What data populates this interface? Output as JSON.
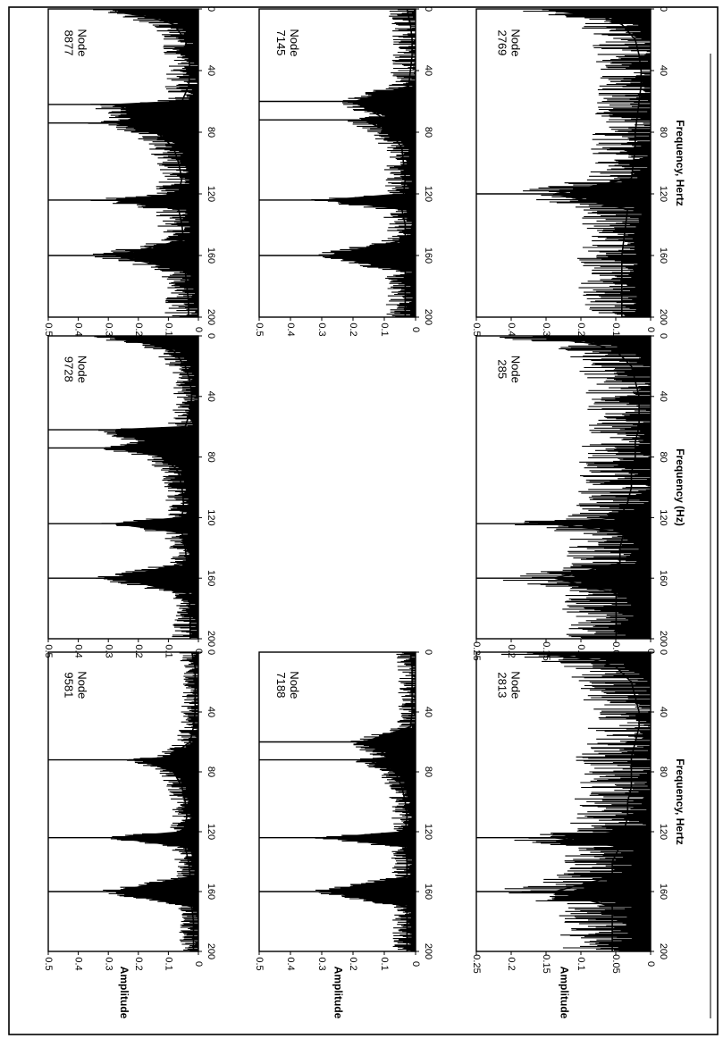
{
  "page": {
    "orientation": "rotated-90-clockwise"
  },
  "colors": {
    "ink": "#000000",
    "background": "#ffffff"
  },
  "chart_data": [
    {
      "id": "p9581",
      "type": "line",
      "node_label": "Node\n9581",
      "xlabel": "",
      "ylabel": "Amplitude",
      "xlim": [
        0,
        200
      ],
      "ylim": [
        0,
        0.5
      ],
      "xticks": [
        "0",
        "40",
        "80",
        "120",
        "160",
        "200"
      ],
      "yticks": [
        "0",
        "0.1",
        "0.2",
        "0.3",
        "0.4",
        "0.5"
      ],
      "peaks_hz": [
        72,
        124,
        160
      ],
      "noise_level": 0.03,
      "low_freq_peak": 0.04,
      "series": [
        {
          "x": [
            0,
            10,
            20,
            30,
            40,
            50,
            60,
            70,
            72,
            80,
            90,
            100,
            110,
            120,
            124,
            130,
            140,
            150,
            160,
            170,
            180,
            190,
            200
          ],
          "values": [
            0.04,
            0.02,
            0.02,
            0.02,
            0.02,
            0.03,
            0.05,
            0.18,
            0.35,
            0.15,
            0.1,
            0.08,
            0.07,
            0.09,
            0.5,
            0.08,
            0.06,
            0.05,
            0.5,
            0.04,
            0.03,
            0.03,
            0.03
          ]
        }
      ]
    },
    {
      "id": "p9728",
      "type": "line",
      "node_label": "Node\n9728",
      "xlabel": "",
      "ylabel": "",
      "xlim": [
        0,
        200
      ],
      "ylim": [
        0,
        0.5
      ],
      "xticks": [
        "0",
        "40",
        "80",
        "120",
        "160",
        "200"
      ],
      "yticks": [
        "0",
        "0.1",
        "0.2",
        "0.3",
        "0.4",
        "0.5"
      ],
      "peaks_hz": [
        62,
        74,
        124,
        160
      ],
      "noise_level": 0.04,
      "low_freq_peak": 0.5,
      "series": [
        {
          "x": [
            0,
            2,
            5,
            10,
            20,
            30,
            40,
            50,
            60,
            62,
            70,
            74,
            80,
            90,
            100,
            110,
            120,
            124,
            130,
            140,
            150,
            160,
            170,
            180,
            190,
            200
          ],
          "values": [
            0.5,
            0.5,
            0.3,
            0.15,
            0.08,
            0.05,
            0.04,
            0.05,
            0.08,
            0.5,
            0.3,
            0.5,
            0.2,
            0.12,
            0.1,
            0.09,
            0.1,
            0.5,
            0.1,
            0.08,
            0.07,
            0.5,
            0.06,
            0.05,
            0.05,
            0.05
          ]
        }
      ]
    },
    {
      "id": "p8877",
      "type": "line",
      "node_label": "Node\n8877",
      "xlabel": "",
      "ylabel": "",
      "xlim": [
        0,
        200
      ],
      "ylim": [
        0,
        0.5
      ],
      "xticks": [
        "0",
        "40",
        "80",
        "120",
        "160",
        "200"
      ],
      "yticks": [
        "0",
        "0.1",
        "0.2",
        "0.3",
        "0.4",
        "0.5"
      ],
      "peaks_hz": [
        62,
        74,
        124,
        160
      ],
      "noise_level": 0.05,
      "low_freq_peak": 0.5,
      "series": [
        {
          "x": [
            0,
            2,
            5,
            10,
            20,
            30,
            40,
            50,
            60,
            62,
            70,
            74,
            80,
            90,
            100,
            110,
            120,
            124,
            130,
            140,
            150,
            160,
            170,
            180,
            190,
            200
          ],
          "values": [
            0.5,
            0.5,
            0.3,
            0.15,
            0.08,
            0.06,
            0.05,
            0.06,
            0.1,
            0.5,
            0.35,
            0.5,
            0.25,
            0.15,
            0.12,
            0.1,
            0.12,
            0.5,
            0.12,
            0.1,
            0.09,
            0.5,
            0.08,
            0.07,
            0.06,
            0.06
          ]
        }
      ]
    },
    {
      "id": "p7188",
      "type": "line",
      "node_label": "Node\n7188",
      "xlabel": "",
      "ylabel": "Amplitude",
      "xlim": [
        0,
        200
      ],
      "ylim": [
        0,
        0.5
      ],
      "xticks": [
        "0",
        "40",
        "80",
        "120",
        "160",
        "200"
      ],
      "yticks": [
        "0",
        "0.1",
        "0.2",
        "0.3",
        "0.4",
        "0.5"
      ],
      "peaks_hz": [
        60,
        72,
        124,
        160
      ],
      "noise_level": 0.03,
      "low_freq_peak": 0.03,
      "series": [
        {
          "x": [
            0,
            10,
            20,
            30,
            40,
            50,
            60,
            70,
            72,
            80,
            90,
            100,
            110,
            120,
            124,
            130,
            140,
            150,
            160,
            170,
            180,
            190,
            200
          ],
          "values": [
            0.03,
            0.02,
            0.02,
            0.02,
            0.02,
            0.03,
            0.3,
            0.15,
            0.28,
            0.12,
            0.08,
            0.06,
            0.05,
            0.06,
            0.5,
            0.06,
            0.05,
            0.05,
            0.5,
            0.05,
            0.05,
            0.05,
            0.05
          ]
        }
      ]
    },
    {
      "id": "p7145",
      "type": "line",
      "node_label": "Node\n7145",
      "xlabel": "",
      "ylabel": "",
      "xlim": [
        0,
        200
      ],
      "ylim": [
        0,
        0.5
      ],
      "xticks": [
        "0",
        "40",
        "80",
        "120",
        "160",
        "200"
      ],
      "yticks": [
        "0",
        "0.1",
        "0.2",
        "0.3",
        "0.4",
        "0.5"
      ],
      "peaks_hz": [
        60,
        72,
        124,
        160
      ],
      "noise_level": 0.04,
      "low_freq_peak": 0.05,
      "series": [
        {
          "x": [
            0,
            10,
            20,
            30,
            40,
            50,
            60,
            70,
            72,
            80,
            90,
            100,
            110,
            120,
            124,
            130,
            140,
            150,
            160,
            170,
            180,
            190,
            200
          ],
          "values": [
            0.05,
            0.03,
            0.02,
            0.02,
            0.03,
            0.04,
            0.35,
            0.2,
            0.3,
            0.15,
            0.08,
            0.07,
            0.06,
            0.07,
            0.5,
            0.08,
            0.06,
            0.06,
            0.5,
            0.06,
            0.06,
            0.06,
            0.06
          ]
        }
      ]
    },
    {
      "id": "p2813",
      "type": "line",
      "node_label": "Node\n2813",
      "xlabel": "Frequency, Hertz",
      "ylabel": "Amplitude",
      "xlim": [
        0,
        200
      ],
      "ylim": [
        0,
        0.25
      ],
      "xticks": [
        "0",
        "40",
        "80",
        "120",
        "160",
        "200"
      ],
      "yticks": [
        "0",
        "0.05",
        "0.1",
        "0.15",
        "0.2",
        "0.25"
      ],
      "peaks_hz": [
        124,
        160
      ],
      "noise_level": 0.05,
      "low_freq_peak": 0.25,
      "series": [
        {
          "x": [
            0,
            2,
            5,
            10,
            20,
            30,
            40,
            50,
            60,
            70,
            80,
            90,
            100,
            110,
            120,
            124,
            130,
            140,
            150,
            160,
            170,
            180,
            190,
            200
          ],
          "values": [
            0.25,
            0.25,
            0.15,
            0.09,
            0.05,
            0.04,
            0.03,
            0.03,
            0.04,
            0.05,
            0.05,
            0.05,
            0.06,
            0.06,
            0.07,
            0.25,
            0.08,
            0.1,
            0.1,
            0.25,
            0.1,
            0.1,
            0.1,
            0.1
          ]
        }
      ]
    },
    {
      "id": "p285",
      "type": "line",
      "node_label": "Node\n285",
      "xlabel": "Frequency (Hz)",
      "ylabel": "",
      "xlim": [
        0,
        200
      ],
      "ylim": [
        0,
        0.25
      ],
      "xticks": [
        "0",
        "40",
        "80",
        "120",
        "160",
        "200"
      ],
      "yticks": [
        "0",
        "0.05",
        "0.1",
        "0.15",
        "0.2",
        "0.25"
      ],
      "peaks_hz": [
        124,
        160
      ],
      "noise_level": 0.05,
      "low_freq_peak": 0.25,
      "series": [
        {
          "x": [
            0,
            2,
            5,
            10,
            20,
            30,
            40,
            50,
            60,
            70,
            80,
            90,
            100,
            110,
            120,
            124,
            130,
            140,
            150,
            160,
            170,
            180,
            190,
            200
          ],
          "values": [
            0.25,
            0.25,
            0.15,
            0.09,
            0.05,
            0.04,
            0.03,
            0.03,
            0.03,
            0.04,
            0.04,
            0.05,
            0.05,
            0.06,
            0.08,
            0.25,
            0.07,
            0.08,
            0.08,
            0.25,
            0.09,
            0.09,
            0.09,
            0.09
          ]
        }
      ]
    },
    {
      "id": "p2769",
      "type": "line",
      "node_label": "Node\n2769",
      "xlabel": "Frequency, Hertz",
      "ylabel": "",
      "xlim": [
        0,
        200
      ],
      "ylim": [
        0,
        0.5
      ],
      "xticks": [
        "0",
        "40",
        "80",
        "120",
        "160",
        "200"
      ],
      "yticks": [
        "0",
        "0.1",
        "0.2",
        "0.3",
        "0.4",
        "0.5"
      ],
      "peaks_hz": [
        120
      ],
      "noise_level": 0.08,
      "low_freq_peak": 0.5,
      "series": [
        {
          "x": [
            0,
            2,
            5,
            10,
            20,
            30,
            40,
            50,
            60,
            70,
            80,
            90,
            100,
            110,
            120,
            130,
            140,
            150,
            160,
            170,
            180,
            190,
            200
          ],
          "values": [
            0.5,
            0.45,
            0.25,
            0.15,
            0.08,
            0.06,
            0.05,
            0.05,
            0.06,
            0.07,
            0.08,
            0.08,
            0.09,
            0.1,
            0.5,
            0.12,
            0.13,
            0.14,
            0.15,
            0.15,
            0.15,
            0.15,
            0.15
          ]
        }
      ]
    }
  ]
}
